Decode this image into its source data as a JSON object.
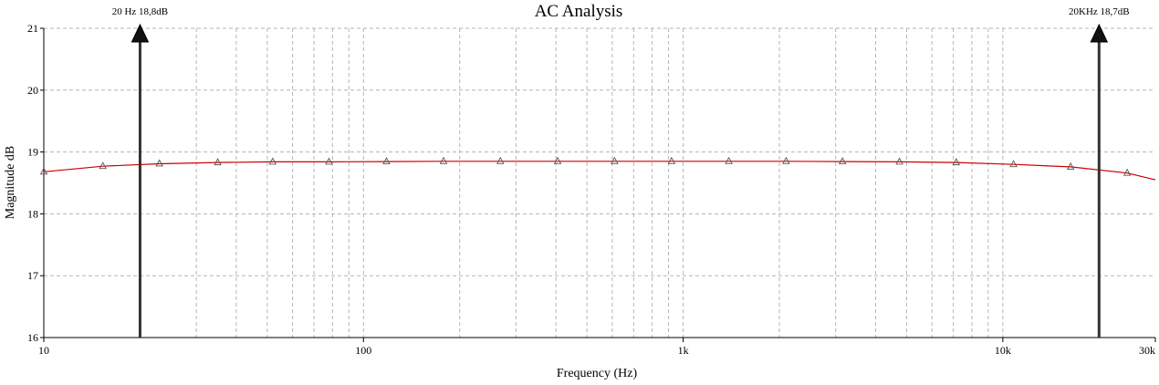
{
  "chart_data": {
    "type": "line",
    "title": "AC Analysis",
    "xlabel": "Frequency (Hz)",
    "ylabel": "Magnitude dB",
    "x_scale": "log",
    "xlim": [
      10,
      30000
    ],
    "ylim": [
      16,
      21
    ],
    "grid": true,
    "x_ticks": [
      {
        "value": 10,
        "label": "10"
      },
      {
        "value": 100,
        "label": "100"
      },
      {
        "value": 1000,
        "label": "1k"
      },
      {
        "value": 10000,
        "label": "10k"
      },
      {
        "value": 30000,
        "label": "30k"
      }
    ],
    "y_ticks": [
      {
        "value": 16,
        "label": "16"
      },
      {
        "value": 17,
        "label": "17"
      },
      {
        "value": 18,
        "label": "18"
      },
      {
        "value": 19,
        "label": "19"
      },
      {
        "value": 20,
        "label": "20"
      },
      {
        "value": 21,
        "label": "21"
      }
    ],
    "series": [
      {
        "color": "#cc0000",
        "marker": "triangle",
        "x": [
          10,
          15.3,
          23,
          35,
          52,
          78,
          118,
          178,
          268,
          405,
          610,
          920,
          1390,
          2100,
          3150,
          4750,
          7150,
          10800,
          16300,
          24500,
          30000
        ],
        "y": [
          18.68,
          18.77,
          18.81,
          18.83,
          18.84,
          18.84,
          18.845,
          18.85,
          18.85,
          18.85,
          18.85,
          18.85,
          18.85,
          18.85,
          18.845,
          18.84,
          18.83,
          18.8,
          18.76,
          18.66,
          18.55
        ],
        "markers_x": [
          10,
          15.3,
          23,
          35,
          52,
          78,
          118,
          178,
          268,
          405,
          610,
          920,
          1390,
          2100,
          3150,
          4750,
          7150,
          10800,
          16300,
          24500
        ]
      }
    ],
    "annotations": [
      {
        "x": 20,
        "label": "20 Hz 18,8dB"
      },
      {
        "x": 20000,
        "label": "20KHz 18,7dB"
      }
    ]
  }
}
